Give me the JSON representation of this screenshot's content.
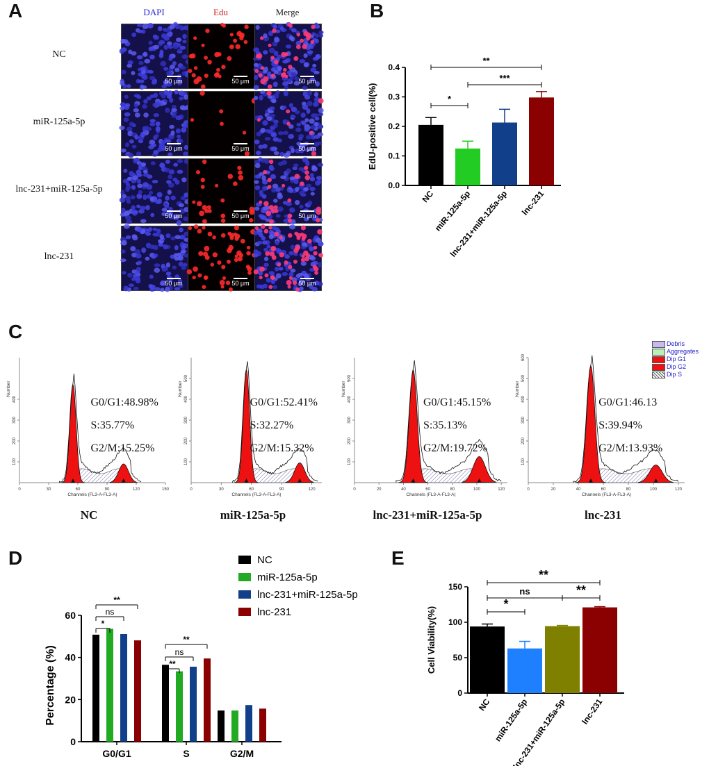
{
  "panelA": {
    "letter": "A",
    "columns": [
      "DAPI",
      "Edu",
      "Merge"
    ],
    "column_colors": [
      "#2222cc",
      "#cc2222",
      "#222222"
    ],
    "rows": [
      "NC",
      "miR-125a-5p",
      "lnc-231+miR-125a-5p",
      "lnc-231"
    ],
    "red_density": [
      0.55,
      0.12,
      0.4,
      0.85
    ],
    "scale_label": "50 μm"
  },
  "panelB": {
    "letter": "B",
    "chart_data": {
      "type": "bar",
      "categories": [
        "NC",
        "miR-125a-5p",
        "lnc-231+miR-125a-5p",
        "lnc-231"
      ],
      "values": [
        0.205,
        0.125,
        0.213,
        0.298
      ],
      "errors": [
        0.025,
        0.025,
        0.045,
        0.02
      ],
      "colors": [
        "#000000",
        "#22cc22",
        "#123f8a",
        "#8b0000"
      ],
      "ylabel": "EdU-positive cell(%)",
      "ylim": [
        0,
        0.4
      ],
      "yticks": [
        "0.0",
        "0.1",
        "0.2",
        "0.3",
        "0.4"
      ],
      "significance": [
        {
          "from": 0,
          "to": 1,
          "label": "*"
        },
        {
          "from": 1,
          "to": 3,
          "label": "***"
        },
        {
          "from": 0,
          "to": 3,
          "label": "**"
        }
      ]
    }
  },
  "panelC": {
    "letter": "C",
    "legend": [
      {
        "label": "Debris",
        "color": "#c8b8f0"
      },
      {
        "label": "Aggregates",
        "color": "#b8f0b8"
      },
      {
        "label": "Dip G1",
        "color": "#ee1111"
      },
      {
        "label": "Dip G2",
        "color": "#ee1111"
      },
      {
        "label": "Dip S",
        "color": "#ffffff"
      }
    ],
    "plots": [
      {
        "title": "NC",
        "g1": "G0/G1:48.98%",
        "s": "S:35.77%",
        "g2": "G2/M:15.25%",
        "yticks": [
          "100",
          "200",
          "300",
          "400"
        ],
        "xticks": [
          "0",
          "30",
          "60",
          "90",
          "120",
          "150"
        ],
        "g1_center": 55,
        "g2_center": 107,
        "x_max": 150,
        "peak": 470,
        "g2_peak": 90
      },
      {
        "title": "miR-125a-5p",
        "g1": "G0/G1:52.41%",
        "s": "S:32.27%",
        "g2": "G2/M:15.32%",
        "yticks": [
          "100",
          "200",
          "300",
          "400",
          "500"
        ],
        "xticks": [
          "0",
          "30",
          "60",
          "90",
          "120"
        ],
        "g1_center": 55,
        "g2_center": 108,
        "x_max": 130,
        "peak": 540,
        "g2_peak": 95
      },
      {
        "title": "lnc-231+miR-125a-5p",
        "g1": "G0/G1:45.15%",
        "s": "S:35.13%",
        "g2": "G2/M:19.72%",
        "yticks": [
          "100",
          "200",
          "300",
          "400",
          "500"
        ],
        "xticks": [
          "0",
          "20",
          "40",
          "60",
          "80",
          "100",
          "120"
        ],
        "g1_center": 48,
        "g2_center": 102,
        "x_max": 125,
        "peak": 540,
        "g2_peak": 125
      },
      {
        "title": "lnc-231",
        "g1": "G0/G1:46.13",
        "s": "S:39.94%",
        "g2": "G2/M:13.93%",
        "yticks": [
          "100",
          "200",
          "300",
          "400",
          "500",
          "600"
        ],
        "xticks": [
          "0",
          "20",
          "40",
          "60",
          "80",
          "100",
          "120"
        ],
        "g1_center": 50,
        "g2_center": 102,
        "x_max": 125,
        "peak": 560,
        "g2_peak": 85
      }
    ],
    "ylabel": "Number",
    "xlabel": "Channels (FL3-A-FL3-A)"
  },
  "panelD": {
    "letter": "D",
    "chart_data": {
      "type": "bar",
      "categories": [
        "G0/G1",
        "S",
        "G2/M"
      ],
      "series": [
        {
          "name": "NC",
          "color": "#000000",
          "values": [
            50,
            36,
            14
          ],
          "errors": [
            0.8,
            0.5,
            0.8
          ]
        },
        {
          "name": "miR-125a-5p",
          "color": "#22aa22",
          "values": [
            53,
            33,
            14
          ],
          "errors": [
            0.6,
            0.4,
            0.8
          ]
        },
        {
          "name": "lnc-231+miR-125a-5p",
          "color": "#123f8a",
          "values": [
            49.5,
            35,
            16
          ],
          "errors": [
            1.6,
            0.6,
            1.4
          ]
        },
        {
          "name": "lnc-231",
          "color": "#8b0000",
          "values": [
            47.5,
            38.8,
            15
          ],
          "errors": [
            0.6,
            0.7,
            0.7
          ]
        }
      ],
      "ylabel": "Percentage  (%)",
      "ylim": [
        0,
        60
      ],
      "yticks": [
        "0",
        "20",
        "40",
        "60"
      ],
      "significance": [
        {
          "group": 0,
          "from": 0,
          "to": 1,
          "label": "*"
        },
        {
          "group": 0,
          "from": 0,
          "to": 2,
          "label": "ns"
        },
        {
          "group": 0,
          "from": 0,
          "to": 3,
          "label": "**"
        },
        {
          "group": 1,
          "from": 0,
          "to": 1,
          "label": "**"
        },
        {
          "group": 1,
          "from": 0,
          "to": 2,
          "label": "ns"
        },
        {
          "group": 1,
          "from": 0,
          "to": 3,
          "label": "**"
        }
      ]
    }
  },
  "panelE": {
    "letter": "E",
    "chart_data": {
      "type": "bar",
      "categories": [
        "NC",
        "miR-125a-5p",
        "lnc-231+miR-125a-5p",
        "lnc-231"
      ],
      "values": [
        94,
        63,
        94.5,
        121
      ],
      "errors": [
        3.5,
        10,
        1,
        1
      ],
      "colors": [
        "#000000",
        "#1e7fff",
        "#808000",
        "#8b0000"
      ],
      "ylabel": "Cell Viability(%)",
      "ylim": [
        0,
        150
      ],
      "yticks": [
        "0",
        "50",
        "100",
        "150"
      ],
      "significance": [
        {
          "from": 0,
          "to": 1,
          "label": "*"
        },
        {
          "from": 0,
          "to": 2,
          "label": "ns"
        },
        {
          "from": 2,
          "to": 3,
          "label": "**"
        },
        {
          "from": 0,
          "to": 3,
          "label": "**"
        }
      ]
    }
  }
}
